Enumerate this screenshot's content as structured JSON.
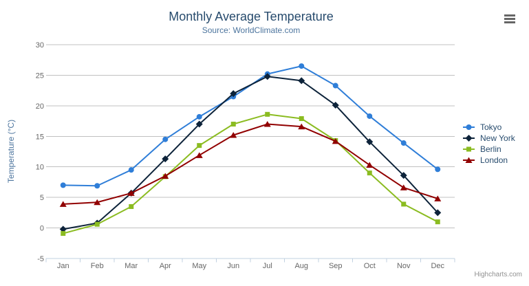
{
  "header": {
    "title": "Monthly Average Temperature",
    "subtitle": "Source: WorldClimate.com"
  },
  "toolbar": {
    "export_menu_icon": "hamburger-icon"
  },
  "credits": {
    "label": "Highcharts.com"
  },
  "chart_data": {
    "type": "line",
    "title": "Monthly Average Temperature",
    "subtitle": "Source: WorldClimate.com",
    "categories": [
      "Jan",
      "Feb",
      "Mar",
      "Apr",
      "May",
      "Jun",
      "Jul",
      "Aug",
      "Sep",
      "Oct",
      "Nov",
      "Dec"
    ],
    "series": [
      {
        "name": "Tokyo",
        "color": "#2f7ed8",
        "marker": "circle",
        "values": [
          7.0,
          6.9,
          9.5,
          14.5,
          18.2,
          21.5,
          25.2,
          26.5,
          23.3,
          18.3,
          13.9,
          9.6
        ]
      },
      {
        "name": "New York",
        "color": "#0d233a",
        "marker": "diamond",
        "values": [
          -0.2,
          0.8,
          5.7,
          11.3,
          17.0,
          22.0,
          24.8,
          24.1,
          20.1,
          14.1,
          8.6,
          2.5
        ]
      },
      {
        "name": "Berlin",
        "color": "#8bbc21",
        "marker": "square",
        "values": [
          -0.9,
          0.6,
          3.5,
          8.4,
          13.5,
          17.0,
          18.6,
          17.9,
          14.3,
          9.0,
          3.9,
          1.0
        ]
      },
      {
        "name": "London",
        "color": "#910000",
        "marker": "triangle",
        "values": [
          3.9,
          4.2,
          5.7,
          8.5,
          11.9,
          15.2,
          17.0,
          16.6,
          14.2,
          10.3,
          6.6,
          4.8
        ]
      }
    ],
    "xlabel": "",
    "ylabel": "Temperature (°C)",
    "ylim": [
      -5,
      30
    ],
    "yticks": [
      -5,
      0,
      5,
      10,
      15,
      20,
      25,
      30
    ],
    "grid": true,
    "legend_position": "right"
  },
  "colors": {
    "title": "#274b6d",
    "subtitle": "#4d759e",
    "axis_label": "#666666",
    "axis_title": "#4d759e",
    "grid_line": "#c0c0c0",
    "axis_line": "#c0d0e0",
    "legend_text": "#274b6d",
    "credits_text": "#909090",
    "background": "#ffffff"
  }
}
